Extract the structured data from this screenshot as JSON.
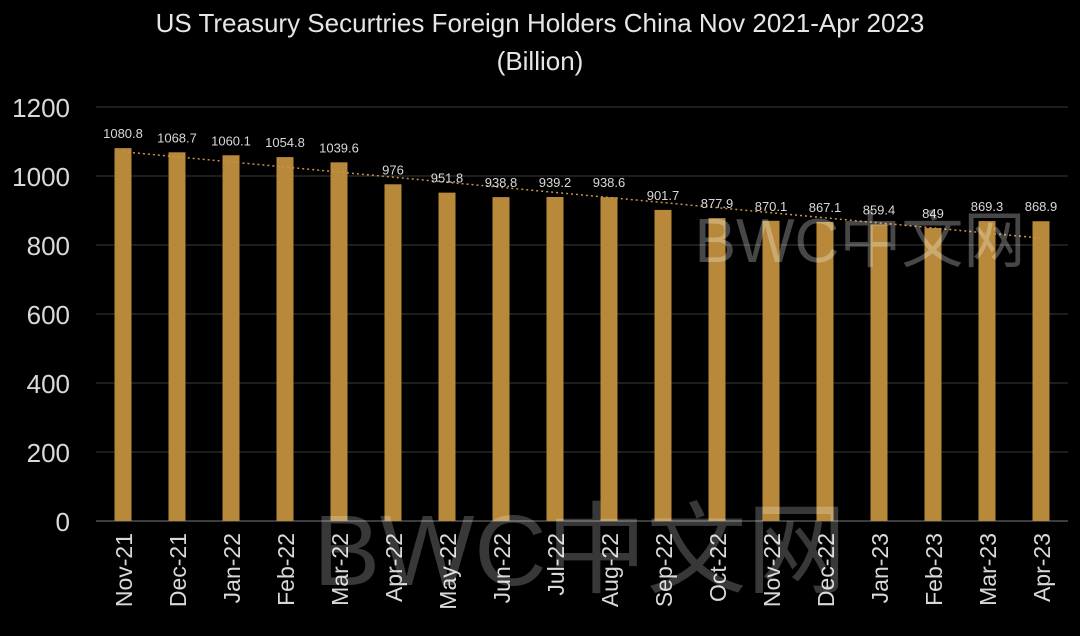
{
  "chart_data": {
    "type": "bar",
    "title": "US Treasury Securtries Foreign Holders China Nov 2021-Apr 2023",
    "subtitle": "(Billion)",
    "categories": [
      "Nov-21",
      "Dec-21",
      "Jan-22",
      "Feb-22",
      "Mar-22",
      "Apr-22",
      "May-22",
      "Jun-22",
      "Jul-22",
      "Aug-22",
      "Sep-22",
      "Oct-22",
      "Nov-22",
      "Dec-22",
      "Jan-23",
      "Feb-23",
      "Mar-23",
      "Apr-23"
    ],
    "series": [
      {
        "values": [
          1080.8,
          1068.7,
          1060.1,
          1054.8,
          1039.6,
          976,
          951.8,
          938.8,
          939.2,
          938.6,
          901.7,
          877.9,
          870.1,
          867.1,
          859.4,
          849,
          869.3,
          868.9
        ]
      }
    ],
    "data_labels": [
      "1080.8",
      "1068.7",
      "1060.1",
      "1054.8",
      "1039.6",
      "976",
      "951.8",
      "938.8",
      "939.2",
      "938.6",
      "901.7",
      "877.9",
      "870.1",
      "867.1",
      "859.4",
      "849",
      "869.3",
      "868.9"
    ],
    "yticks": [
      "0",
      "200",
      "400",
      "600",
      "800",
      "1000",
      "1200"
    ],
    "ylim": [
      0,
      1200
    ],
    "xlabel": "",
    "ylabel": "",
    "trendline": {
      "type": "linear",
      "style": "dotted"
    },
    "grid": true,
    "legend": "none",
    "watermark": "BWC中文网",
    "colors": {
      "bar": "#B8893A",
      "trend": "#C8924A",
      "grid": "#3a3a3a",
      "text": "#d9d9d9",
      "background": "#000000"
    }
  }
}
